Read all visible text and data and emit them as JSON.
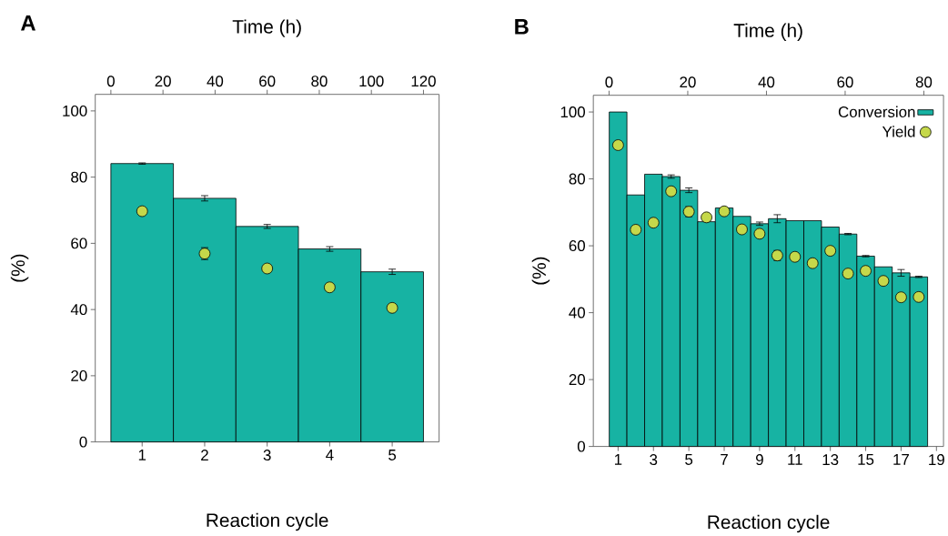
{
  "chart_data": [
    {
      "type": "bar",
      "title": "A",
      "xlabel": "Reaction cycle",
      "x2label": "Time (h)",
      "ylabel": "(%)",
      "x": [
        1,
        2,
        3,
        4,
        5
      ],
      "xlim": [
        0.25,
        5.75
      ],
      "xticks": [
        1,
        2,
        3,
        4,
        5
      ],
      "x2lim": [
        -6,
        126
      ],
      "x2ticks": [
        0,
        20,
        40,
        60,
        80,
        100,
        120
      ],
      "ylim": [
        0,
        105
      ],
      "yticks": [
        0,
        20,
        40,
        60,
        80,
        100
      ],
      "series": [
        {
          "type": "bar",
          "color": "#17b3a3",
          "values": [
            84.1,
            73.6,
            65.1,
            58.3,
            51.4
          ],
          "errors": [
            0.2,
            0.8,
            0.6,
            0.7,
            0.8
          ]
        },
        {
          "type": "scatter",
          "color": "#c5d84a",
          "marker": "circle",
          "values": [
            69.7,
            56.9,
            52.4,
            46.7,
            40.5
          ],
          "errors": [
            null,
            1.8,
            null,
            1.0,
            null
          ]
        }
      ]
    },
    {
      "type": "bar",
      "title": "B",
      "xlabel": "Reaction cycle",
      "x2label": "Time (h)",
      "ylabel": "(%)",
      "x": [
        1,
        2,
        3,
        4,
        5,
        6,
        7,
        8,
        9,
        10,
        11,
        12,
        13,
        14,
        15,
        16,
        17,
        18
      ],
      "xlim": [
        -0.4,
        19.4
      ],
      "xticks": [
        1,
        3,
        5,
        7,
        9,
        11,
        13,
        15,
        17,
        19
      ],
      "x2lim": [
        -4,
        85
      ],
      "x2ticks": [
        0,
        20,
        40,
        60,
        80
      ],
      "ylim": [
        0,
        105
      ],
      "yticks": [
        0,
        20,
        40,
        60,
        80,
        100
      ],
      "legend": "top right",
      "series": [
        {
          "type": "bar",
          "name": "Conversion",
          "color": "#17b3a3",
          "values": [
            100,
            75.2,
            81.4,
            80.7,
            76.6,
            67.2,
            71.3,
            68.8,
            66.6,
            68.1,
            67.5,
            67.5,
            65.6,
            63.5,
            56.9,
            53.7,
            51.9,
            50.7
          ],
          "errors": [
            null,
            null,
            null,
            0.5,
            0.7,
            null,
            null,
            null,
            0.5,
            1.2,
            null,
            null,
            null,
            0.2,
            0.2,
            null,
            1.0,
            0.2
          ]
        },
        {
          "type": "scatter",
          "name": "Yield",
          "color": "#c5d84a",
          "marker": "circle",
          "values": [
            90.1,
            64.8,
            66.9,
            76.3,
            70.2,
            68.5,
            70.3,
            64.9,
            63.6,
            57.1,
            56.7,
            54.8,
            58.5,
            51.7,
            52.5,
            49.5,
            44.6,
            44.7
          ],
          "errors": [
            null,
            null,
            null,
            null,
            1.5,
            null,
            null,
            null,
            null,
            1.5,
            null,
            null,
            null,
            null,
            null,
            null,
            null,
            null
          ]
        }
      ]
    }
  ]
}
